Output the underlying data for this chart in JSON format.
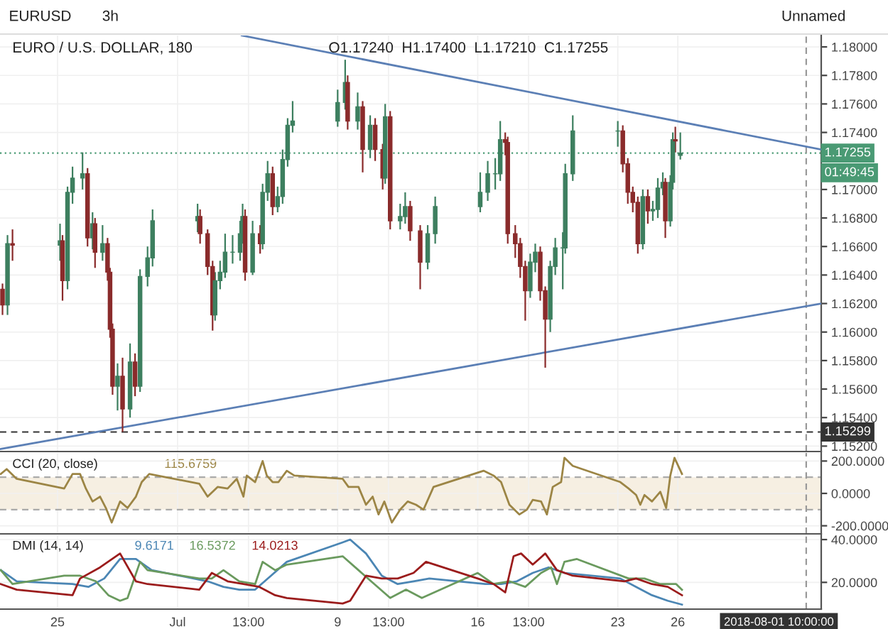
{
  "chart_data": [
    {
      "type": "candlestick",
      "title": "EURO / U.S. DOLLAR, 180",
      "subtitle": "O1.17240  H1.17400  L1.17210  C1.17255",
      "annotations": [
        "EURUSD",
        "3h",
        "Unnamed",
        "01:49:45"
      ],
      "colors": [
        "#8a2b2b",
        "#3d7f5f",
        "#8a2b2b",
        "#3d7f5f",
        "#8a2b2b",
        "#3d7f5f",
        "#3d7f5f",
        "#3d7f5f",
        "#8a2b2b",
        "#3d7f5f",
        "#8a2b2b",
        "#3d7f5f",
        "#8a2b2b",
        "#8a2b2b",
        "#8a2b2b",
        "#3d7f5f",
        "#8a2b2b",
        "#3d7f5f",
        "#8a2b2b",
        "#3d7f5f",
        "#3d7f5f",
        "#3d7f5f",
        "#3d7f5f",
        "#8a2b2b",
        "#8a2b2b",
        "#8a2b2b",
        "#3d7f5f",
        "#3d7f5f",
        "#3d7f5f",
        "#3d7f5f",
        "#3d7f5f",
        "#3d7f5f",
        "#8a2b2b",
        "#3d7f5f",
        "#8a2b2b",
        "#3d7f5f",
        "#3d7f5f",
        "#8a2b2b",
        "#3d7f5f",
        "#3d7f5f",
        "#3d7f5f",
        "#3d7f5f",
        "#3d7f5f",
        "#3d7f5f",
        "#8a2b2b",
        "#3d7f5f",
        "#8a2b2b",
        "#3d7f5f",
        "#8a2b2b",
        "#8a2b2b",
        "#3d7f5f",
        "#8a2b2b",
        "#3d7f5f",
        "#3d7f5f",
        "#8a2b2b",
        "#8a2b2b",
        "#3d7f5f",
        "#3d7f5f",
        "#3d7f5f",
        "#3d7f5f",
        "#3d7f5f",
        "#3d7f5f",
        "#8a2b2b",
        "#8a2b2b",
        "#8a2b2b",
        "#8a2b2b",
        "#8a2b2b",
        "#3d7f5f",
        "#3d7f5f",
        "#8a2b2b",
        "#8a2b2b",
        "#3d7f5f",
        "#3d7f5f",
        "#3d7f5f",
        "#3d7f5f",
        "#3d7f5f",
        "#3d7f5f",
        "#8a2b2b",
        "#8a2b2b",
        "#8a2b2b",
        "#8a2b2b",
        "#3d7f5f",
        "#8a2b2b",
        "#3d7f5f",
        "#3d7f5f",
        "#3d7f5f",
        "#8a2b2b",
        "#3d7f5f",
        "#3d7f5f",
        "#8a2b2b",
        "#3d7f5f"
      ],
      "x": [
        "2018-06-22T06:00",
        "2018-06-22T12:00",
        "2018-06-22T18:00",
        "2018-06-25T03:00",
        "2018-06-25T06:00",
        "2018-06-25T12:00",
        "2018-06-25T18:00",
        "2018-06-26T06:00",
        "2018-06-26T12:00",
        "2018-06-26T18:00",
        "2018-06-26T21:00",
        "2018-06-27T06:00",
        "2018-06-27T12:00",
        "2018-06-27T15:00",
        "2018-06-27T18:00",
        "2018-06-28T00:00",
        "2018-06-28T06:00",
        "2018-06-28T15:00",
        "2018-06-28T21:00",
        "2018-06-29T03:00",
        "2018-06-29T12:00",
        "2018-06-29T18:00",
        "2018-07-02T00:00",
        "2018-07-02T03:00",
        "2018-07-02T12:00",
        "2018-07-02T18:00",
        "2018-07-02T21:00",
        "2018-07-03T03:00",
        "2018-07-03T09:00",
        "2018-07-03T18:00",
        "2018-07-04T03:00",
        "2018-07-04T06:00",
        "2018-07-04T09:00",
        "2018-07-04T18:00",
        "2018-07-05T03:00",
        "2018-07-05T06:00",
        "2018-07-05T12:00",
        "2018-07-05T18:00",
        "2018-07-06T00:00",
        "2018-07-06T06:00",
        "2018-07-06T12:00",
        "2018-07-06T18:00",
        "2018-07-09T00:00",
        "2018-07-09T09:00",
        "2018-07-09T12:00",
        "2018-07-10T00:00",
        "2018-07-10T06:00",
        "2018-07-10T15:00",
        "2018-07-10T21:00",
        "2018-07-11T06:00",
        "2018-07-11T09:00",
        "2018-07-11T15:00",
        "2018-07-12T03:00",
        "2018-07-12T09:00",
        "2018-07-12T15:00",
        "2018-07-13T03:00",
        "2018-07-13T12:00",
        "2018-07-13T21:00",
        "2018-07-16T03:00",
        "2018-07-16T12:00",
        "2018-07-16T21:00",
        "2018-07-17T03:00",
        "2018-07-17T09:00",
        "2018-07-17T12:00",
        "2018-07-17T21:00",
        "2018-07-18T03:00",
        "2018-07-18T09:00",
        "2018-07-18T15:00",
        "2018-07-18T21:00",
        "2018-07-19T03:00",
        "2018-07-19T09:00",
        "2018-07-19T15:00",
        "2018-07-19T21:00",
        "2018-07-20T06:00",
        "2018-07-20T09:00",
        "2018-07-20T18:00",
        "2018-07-23T00:00",
        "2018-07-23T06:00",
        "2018-07-23T12:00",
        "2018-07-23T18:00",
        "2018-07-24T00:00",
        "2018-07-24T06:00",
        "2018-07-24T12:00",
        "2018-07-24T18:00",
        "2018-07-25T00:00",
        "2018-07-25T06:00",
        "2018-07-25T09:00",
        "2018-07-25T15:00",
        "2018-07-25T18:00",
        "2018-07-25T21:00",
        "2018-07-26T03:00"
      ],
      "ohlc": [
        [
          1.163,
          1.1634,
          1.1612,
          1.1619
        ],
        [
          1.1619,
          1.1668,
          1.1612,
          1.1662
        ],
        [
          1.1662,
          1.1672,
          1.165,
          1.1661
        ],
        [
          1.1661,
          1.1676,
          1.165,
          1.1664
        ],
        [
          1.1664,
          1.1668,
          1.1622,
          1.1636
        ],
        [
          1.1636,
          1.1702,
          1.163,
          1.1698
        ],
        [
          1.1698,
          1.1716,
          1.169,
          1.1708
        ],
        [
          1.1708,
          1.1726,
          1.17,
          1.1711
        ],
        [
          1.1711,
          1.1715,
          1.166,
          1.1666
        ],
        [
          1.1666,
          1.1684,
          1.1658,
          1.1676
        ],
        [
          1.1676,
          1.168,
          1.1645,
          1.1656
        ],
        [
          1.1656,
          1.1675,
          1.165,
          1.1662
        ],
        [
          1.1662,
          1.1666,
          1.1636,
          1.1642
        ],
        [
          1.1642,
          1.1645,
          1.1596,
          1.1602
        ],
        [
          1.1602,
          1.1606,
          1.1556,
          1.1562
        ],
        [
          1.1562,
          1.1578,
          1.1545,
          1.1569
        ],
        [
          1.1569,
          1.1582,
          1.153,
          1.1546
        ],
        [
          1.1546,
          1.1592,
          1.154,
          1.1579
        ],
        [
          1.1579,
          1.1585,
          1.1555,
          1.1562
        ],
        [
          1.1562,
          1.1644,
          1.1558,
          1.1639
        ],
        [
          1.1639,
          1.166,
          1.1632,
          1.1652
        ],
        [
          1.1652,
          1.1686,
          1.1646,
          1.1678
        ],
        [
          1.1678,
          1.169,
          1.167,
          1.1681
        ],
        [
          1.1681,
          1.1686,
          1.1662,
          1.1669
        ],
        [
          1.1669,
          1.1672,
          1.164,
          1.1646
        ],
        [
          1.1646,
          1.165,
          1.1601,
          1.1612
        ],
        [
          1.1612,
          1.1642,
          1.1608,
          1.1636
        ],
        [
          1.1636,
          1.165,
          1.163,
          1.1642
        ],
        [
          1.1642,
          1.1669,
          1.1638,
          1.1656
        ],
        [
          1.1656,
          1.1668,
          1.1648,
          1.1656
        ],
        [
          1.1656,
          1.1678,
          1.165,
          1.1669
        ],
        [
          1.1669,
          1.169,
          1.1662,
          1.1681
        ],
        [
          1.1681,
          1.1686,
          1.1636,
          1.1642
        ],
        [
          1.1642,
          1.1678,
          1.164,
          1.1669
        ],
        [
          1.1669,
          1.1675,
          1.1655,
          1.1662
        ],
        [
          1.1662,
          1.1704,
          1.1658,
          1.1698
        ],
        [
          1.1698,
          1.172,
          1.1692,
          1.1711
        ],
        [
          1.1711,
          1.1716,
          1.1682,
          1.1688
        ],
        [
          1.1688,
          1.1702,
          1.1684,
          1.1695
        ],
        [
          1.1695,
          1.1728,
          1.169,
          1.1721
        ],
        [
          1.1721,
          1.175,
          1.1716,
          1.1745
        ],
        [
          1.1745,
          1.1762,
          1.174,
          1.1748
        ],
        [
          1.1748,
          1.177,
          1.1744,
          1.1761
        ],
        [
          1.1761,
          1.1791,
          1.1756,
          1.1775
        ],
        [
          1.1775,
          1.178,
          1.1742,
          1.1748
        ],
        [
          1.1748,
          1.1768,
          1.1742,
          1.1758
        ],
        [
          1.1758,
          1.1762,
          1.1712,
          1.1728
        ],
        [
          1.1728,
          1.1752,
          1.1722,
          1.1745
        ],
        [
          1.1745,
          1.175,
          1.172,
          1.1728
        ],
        [
          1.1728,
          1.1732,
          1.17,
          1.1708
        ],
        [
          1.1708,
          1.176,
          1.1704,
          1.1751
        ],
        [
          1.1751,
          1.1755,
          1.1672,
          1.1678
        ],
        [
          1.1678,
          1.169,
          1.1672,
          1.1681
        ],
        [
          1.1681,
          1.1698,
          1.1676,
          1.1688
        ],
        [
          1.1688,
          1.1692,
          1.1664,
          1.1671
        ],
        [
          1.1671,
          1.1675,
          1.163,
          1.1649
        ],
        [
          1.1649,
          1.1675,
          1.1644,
          1.1669
        ],
        [
          1.1669,
          1.1695,
          1.1662,
          1.1688
        ],
        [
          1.1688,
          1.1712,
          1.1684,
          1.1698
        ],
        [
          1.1698,
          1.172,
          1.1692,
          1.1711
        ],
        [
          1.1711,
          1.1722,
          1.17,
          1.1711
        ],
        [
          1.1711,
          1.1748,
          1.1706,
          1.1735
        ],
        [
          1.1735,
          1.174,
          1.1724,
          1.1733
        ],
        [
          1.1733,
          1.1737,
          1.1662,
          1.1669
        ],
        [
          1.1669,
          1.1675,
          1.1652,
          1.1662
        ],
        [
          1.1662,
          1.1666,
          1.1638,
          1.1646
        ],
        [
          1.1646,
          1.165,
          1.1608,
          1.1629
        ],
        [
          1.1629,
          1.1655,
          1.1624,
          1.1649
        ],
        [
          1.1649,
          1.1662,
          1.1642,
          1.1656
        ],
        [
          1.1656,
          1.166,
          1.1622,
          1.1629
        ],
        [
          1.1629,
          1.1632,
          1.1575,
          1.1609
        ],
        [
          1.1609,
          1.165,
          1.16,
          1.1646
        ],
        [
          1.1646,
          1.1666,
          1.164,
          1.1659
        ],
        [
          1.1659,
          1.167,
          1.163,
          1.1659
        ],
        [
          1.1659,
          1.1718,
          1.1655,
          1.1711
        ],
        [
          1.1711,
          1.1752,
          1.1706,
          1.1741
        ],
        [
          1.1741,
          1.1748,
          1.173,
          1.1741
        ],
        [
          1.1741,
          1.1745,
          1.1712,
          1.1718
        ],
        [
          1.1718,
          1.1722,
          1.169,
          1.1698
        ],
        [
          1.1698,
          1.1702,
          1.1684,
          1.1691
        ],
        [
          1.1691,
          1.1695,
          1.1655,
          1.1662
        ],
        [
          1.1662,
          1.17,
          1.1658,
          1.1695
        ],
        [
          1.1695,
          1.17,
          1.1676,
          1.1685
        ],
        [
          1.1685,
          1.1692,
          1.1678,
          1.1686
        ],
        [
          1.1686,
          1.1708,
          1.168,
          1.1701
        ],
        [
          1.1701,
          1.1712,
          1.1696,
          1.1705
        ],
        [
          1.1705,
          1.1708,
          1.1666,
          1.1678
        ],
        [
          1.1678,
          1.171,
          1.1674,
          1.1705
        ],
        [
          1.1705,
          1.174,
          1.17,
          1.1735
        ],
        [
          1.1735,
          1.1744,
          1.1726,
          1.1734
        ],
        [
          1.1724,
          1.174,
          1.1721,
          1.17255
        ]
      ],
      "series": [
        {
          "type": "line",
          "color": "#5b7fb5",
          "x": [
            "2018-07-04T05:00",
            "2018-08-02T04:00"
          ],
          "values": [
            1.1808,
            1.1728
          ]
        },
        {
          "type": "line",
          "color": "#5b7fb5",
          "x": [
            "2018-06-22T04:00",
            "2018-08-02T04:00"
          ],
          "values": [
            1.1518,
            1.162
          ]
        }
      ],
      "xlim": [
        "2018-06-22T03:00",
        "2018-08-02T04:00"
      ],
      "ylim": [
        1.15162,
        1.1808
      ],
      "xticks": [
        {
          "value": "2018-06-25",
          "label": null
        },
        {
          "value": "2018-07-01",
          "label": null
        },
        {
          "value": "2018-07-04T13:00",
          "label": null
        },
        {
          "value": "2018-07-09",
          "label": null
        },
        {
          "value": "2018-07-11T13:00",
          "label": null
        },
        {
          "value": "2018-07-16",
          "label": null
        },
        {
          "value": "2018-07-18T13:00",
          "label": null
        },
        {
          "value": "2018-07-23",
          "label": null
        },
        {
          "value": "2018-07-26",
          "label": null
        }
      ],
      "yticks": [
        {
          "value": 1.152,
          "label": "1.15200"
        },
        {
          "value": 1.154,
          "label": "1.15400"
        },
        {
          "value": 1.156,
          "label": "1.15600"
        },
        {
          "value": 1.158,
          "label": "1.15800"
        },
        {
          "value": 1.16,
          "label": "1.16000"
        },
        {
          "value": 1.162,
          "label": "1.16200"
        },
        {
          "value": 1.164,
          "label": "1.16400"
        },
        {
          "value": 1.166,
          "label": "1.16600"
        },
        {
          "value": 1.168,
          "label": "1.16800"
        },
        {
          "value": 1.17,
          "label": "1.17000"
        },
        {
          "value": 1.174,
          "label": "1.17400"
        },
        {
          "value": 1.176,
          "label": "1.17600"
        },
        {
          "value": 1.178,
          "label": "1.17800"
        },
        {
          "value": 1.18,
          "label": "1.18000"
        }
      ],
      "ref_lines": [
        {
          "axis": "y",
          "value": 1.17255,
          "label": "1.17255",
          "color": "#4a9a74",
          "line_style": "dotted"
        },
        {
          "axis": "y",
          "value": 1.15299,
          "label": "1.15299",
          "color": "#333333",
          "line_style": "dashed"
        },
        {
          "axis": "x",
          "value": "2018-08-01T10:00",
          "color": "#999999",
          "line_style": "dashed"
        }
      ],
      "grid": true,
      "tick_labels": "y"
    },
    {
      "type": "line",
      "title": "CCI (20, close)",
      "annotations": [
        "115.6759"
      ],
      "series": [
        {
          "color": "#9c8545",
          "x": [
            "2018-06-22T04:00",
            "2018-06-22T11:00",
            "2018-06-22T23:00",
            "2018-06-25T08:00",
            "2018-06-25T18:00",
            "2018-06-26T03:00",
            "2018-06-26T10:00",
            "2018-06-26T18:00",
            "2018-06-27T03:00",
            "2018-06-27T10:00",
            "2018-06-27T17:00",
            "2018-06-28T03:00",
            "2018-06-28T12:00",
            "2018-06-28T22:00",
            "2018-06-29T05:00",
            "2018-06-29T14:00",
            "2018-07-02T02:00",
            "2018-07-02T12:00",
            "2018-07-03T00:00",
            "2018-07-03T12:00",
            "2018-07-03T23:00",
            "2018-07-04T07:00",
            "2018-07-04T11:00",
            "2018-07-04T21:00",
            "2018-07-05T06:00",
            "2018-07-05T11:00",
            "2018-07-05T18:00",
            "2018-07-06T01:00",
            "2018-07-06T11:00",
            "2018-07-06T20:00",
            "2018-07-09T06:00",
            "2018-07-09T13:00",
            "2018-07-10T01:00",
            "2018-07-10T10:00",
            "2018-07-10T18:00",
            "2018-07-11T01:00",
            "2018-07-11T08:00",
            "2018-07-11T17:00",
            "2018-07-12T03:00",
            "2018-07-12T12:00",
            "2018-07-12T22:00",
            "2018-07-13T07:00",
            "2018-07-13T19:00",
            "2018-07-16T07:00",
            "2018-07-16T19:00",
            "2018-07-17T04:00",
            "2018-07-17T14:00",
            "2018-07-18T02:00",
            "2018-07-18T11:00",
            "2018-07-18T18:00",
            "2018-07-19T04:00",
            "2018-07-19T11:00",
            "2018-07-19T18:00",
            "2018-07-20T04:00",
            "2018-07-20T08:00",
            "2018-07-20T18:00",
            "2018-07-23T03:00",
            "2018-07-23T13:00",
            "2018-07-23T22:00",
            "2018-07-24T03:00",
            "2018-07-24T08:00",
            "2018-07-24T17:00",
            "2018-07-25T03:00",
            "2018-07-25T10:00",
            "2018-07-25T15:00",
            "2018-07-25T20:00",
            "2018-07-26T05:00"
          ],
          "values": [
            120,
            150,
            90,
            30,
            120,
            120,
            30,
            -50,
            -20,
            -90,
            -180,
            -50,
            -90,
            -20,
            70,
            120,
            60,
            -20,
            40,
            30,
            90,
            -20,
            110,
            70,
            200,
            110,
            70,
            70,
            140,
            110,
            90,
            40,
            40,
            -70,
            -20,
            -130,
            -50,
            -180,
            -100,
            -50,
            -70,
            -100,
            40,
            140,
            110,
            70,
            -70,
            -130,
            -100,
            -40,
            -50,
            -130,
            40,
            70,
            220,
            170,
            70,
            30,
            -10,
            -70,
            -10,
            -50,
            10,
            -90,
            110,
            220,
            120
          ]
        }
      ],
      "bands": [
        {
          "axis": "y",
          "from": -100,
          "to": 100,
          "color": "#f6efe2"
        }
      ],
      "ref_lines": [
        {
          "axis": "y",
          "value": 100,
          "color": "#aaaaaa",
          "line_style": "dashed"
        },
        {
          "axis": "y",
          "value": -100,
          "color": "#aaaaaa",
          "line_style": "dashed"
        },
        {
          "axis": "x",
          "value": "2018-08-01T10:00",
          "color": "#999999",
          "line_style": "dashed"
        }
      ],
      "xlim": [
        "2018-06-22T03:00",
        "2018-08-02T04:00"
      ],
      "ylim": [
        -250,
        250
      ],
      "xticks": [
        {
          "value": "2018-06-25",
          "label": null
        },
        {
          "value": "2018-07-01",
          "label": null
        },
        {
          "value": "2018-07-04T13:00",
          "label": null
        },
        {
          "value": "2018-07-09",
          "label": null
        },
        {
          "value": "2018-07-11T13:00",
          "label": null
        },
        {
          "value": "2018-07-16",
          "label": null
        },
        {
          "value": "2018-07-18T13:00",
          "label": null
        },
        {
          "value": "2018-07-23",
          "label": null
        },
        {
          "value": "2018-07-26",
          "label": null
        }
      ],
      "yticks": [
        {
          "value": -200,
          "label": "-200.0000"
        },
        {
          "value": 0,
          "label": "0.0000"
        },
        {
          "value": 200,
          "label": "200.0000"
        }
      ],
      "grid": true,
      "tick_labels": "y"
    },
    {
      "type": "line",
      "title": "DMI (14, 14)",
      "annotations": [
        "9.6171",
        "16.5372",
        "14.0213"
      ],
      "series": [
        {
          "color": "#4b86b4",
          "x": [
            "2018-06-22T04:00",
            "2018-06-22T23:00",
            "2018-06-25T18:00",
            "2018-06-26T13:00",
            "2018-06-27T08:00",
            "2018-06-28T03:00",
            "2018-06-28T22:00",
            "2018-06-29T17:00",
            "2018-07-02T12:00",
            "2018-07-03T07:00",
            "2018-07-04T02:00",
            "2018-07-04T21:00",
            "2018-07-05T16:00",
            "2018-07-06T11:00",
            "2018-07-09T06:00",
            "2018-07-09T15:00",
            "2018-07-10T10:00",
            "2018-07-11T05:00",
            "2018-07-12T00:00",
            "2018-07-12T19:00",
            "2018-07-13T14:00",
            "2018-07-16T09:00",
            "2018-07-17T04:00",
            "2018-07-17T23:00",
            "2018-07-18T18:00",
            "2018-07-19T13:00",
            "2018-07-20T08:00",
            "2018-07-23T03:00",
            "2018-07-23T22:00",
            "2018-07-24T17:00",
            "2018-07-25T12:00",
            "2018-07-26T05:00"
          ],
          "values": [
            25.7,
            20.5,
            19.2,
            17.9,
            21.8,
            30.9,
            30.9,
            25.7,
            20.5,
            17.9,
            16.6,
            16.6,
            23.1,
            29.6,
            38.7,
            40,
            33.5,
            23.1,
            19.2,
            20.5,
            21.8,
            19.2,
            19.2,
            20.5,
            24.4,
            27,
            24.4,
            21.8,
            17.9,
            14,
            11.4,
            9.6
          ]
        },
        {
          "color": "#6a9a5e",
          "x": [
            "2018-06-22T04:00",
            "2018-06-22T18:00",
            "2018-06-25T08:00",
            "2018-06-26T03:00",
            "2018-06-26T22:00",
            "2018-06-27T13:00",
            "2018-06-28T03:00",
            "2018-06-28T12:00",
            "2018-06-29T03:00",
            "2018-06-29T12:00",
            "2018-07-02T02:00",
            "2018-07-02T17:00",
            "2018-07-03T07:00",
            "2018-07-04T02:00",
            "2018-07-04T21:00",
            "2018-07-05T06:00",
            "2018-07-05T21:00",
            "2018-07-06T11:00",
            "2018-07-09T06:00",
            "2018-07-10T01:00",
            "2018-07-10T20:00",
            "2018-07-11T15:00",
            "2018-07-12T10:00",
            "2018-07-13T05:00",
            "2018-07-16T00:00",
            "2018-07-16T19:00",
            "2018-07-17T14:00",
            "2018-07-18T09:00",
            "2018-07-19T04:00",
            "2018-07-19T16:00",
            "2018-07-19T23:00",
            "2018-07-20T08:00",
            "2018-07-20T23:00",
            "2018-07-23T13:00",
            "2018-07-24T08:00",
            "2018-07-25T03:00",
            "2018-07-25T22:00",
            "2018-07-26T05:00"
          ],
          "values": [
            25.7,
            19.2,
            23.1,
            23.1,
            20.5,
            14,
            11.4,
            12.7,
            29.6,
            25.7,
            21.8,
            21.8,
            25.7,
            20.5,
            19.2,
            29.6,
            25.7,
            28.3,
            32.2,
            25.7,
            19.2,
            12.7,
            16.6,
            12.7,
            24.4,
            19.2,
            20.5,
            17.9,
            24.4,
            27,
            19.2,
            29.6,
            30.9,
            21.8,
            21.8,
            19.2,
            19.2,
            16.5
          ]
        },
        {
          "color": "#9b1c1c",
          "x": [
            "2018-06-22T04:00",
            "2018-06-22T23:00",
            "2018-06-25T18:00",
            "2018-06-26T03:00",
            "2018-06-27T03:00",
            "2018-06-28T03:00",
            "2018-06-28T22:00",
            "2018-06-29T12:00",
            "2018-07-02T02:00",
            "2018-07-02T17:00",
            "2018-07-03T12:00",
            "2018-07-04T07:00",
            "2018-07-05T02:00",
            "2018-07-05T21:00",
            "2018-07-06T11:00",
            "2018-07-09T06:00",
            "2018-07-09T15:00",
            "2018-07-10T10:00",
            "2018-07-11T05:00",
            "2018-07-12T00:00",
            "2018-07-12T19:00",
            "2018-07-13T10:00",
            "2018-07-16T00:00",
            "2018-07-16T19:00",
            "2018-07-17T09:00",
            "2018-07-17T19:00",
            "2018-07-18T04:00",
            "2018-07-18T18:00",
            "2018-07-19T09:00",
            "2018-07-19T23:00",
            "2018-07-20T18:00",
            "2018-07-23T08:00",
            "2018-07-23T22:00",
            "2018-07-24T17:00",
            "2018-07-25T12:00",
            "2018-07-26T05:00"
          ],
          "values": [
            19.2,
            16.6,
            14,
            21.8,
            27,
            33.5,
            20.5,
            19.2,
            16.6,
            24.4,
            20.5,
            19.2,
            17.9,
            14,
            12.7,
            10.1,
            11.4,
            23.1,
            21.8,
            21.8,
            24.4,
            29.6,
            21.8,
            19.2,
            15.3,
            32.2,
            33.5,
            28.3,
            33.5,
            25.7,
            23.1,
            20.5,
            21.8,
            19.2,
            17.9,
            14
          ]
        }
      ],
      "ref_lines": [
        {
          "axis": "x",
          "value": "2018-08-01T10:00",
          "label": "2018-08-01 10:00:00",
          "color": "#999999",
          "line_style": "dashed"
        }
      ],
      "xlim": [
        "2018-06-22T03:00",
        "2018-08-02T04:00"
      ],
      "ylim": [
        7.5,
        42
      ],
      "xticks": [
        {
          "value": "2018-06-25",
          "label": "25"
        },
        {
          "value": "2018-07-01",
          "label": "Jul"
        },
        {
          "value": "2018-07-04T13:00",
          "label": "13:00"
        },
        {
          "value": "2018-07-09",
          "label": "9"
        },
        {
          "value": "2018-07-11T13:00",
          "label": "13:00"
        },
        {
          "value": "2018-07-16",
          "label": "16"
        },
        {
          "value": "2018-07-18T13:00",
          "label": "13:00"
        },
        {
          "value": "2018-07-23",
          "label": "23"
        },
        {
          "value": "2018-07-26",
          "label": "26"
        }
      ],
      "yticks": [
        {
          "value": 20,
          "label": "20.0000"
        },
        {
          "value": 40,
          "label": "40.0000"
        }
      ],
      "grid": true
    }
  ]
}
